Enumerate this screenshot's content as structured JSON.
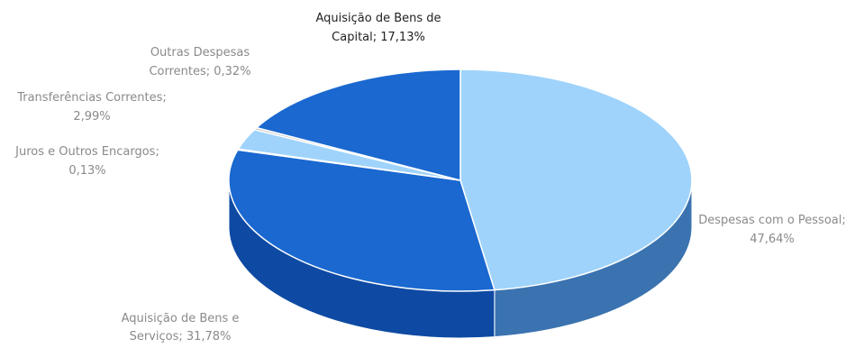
{
  "chart_data": {
    "type": "pie",
    "style": "3d-pie",
    "title": "",
    "legend": "none",
    "slices": [
      {
        "label": "Despesas com o Pessoal",
        "value": 47.64,
        "display": "47,64%",
        "line1": "Despesas com o Pessoal;",
        "line2": "47,64%",
        "color": "#9fd3fb",
        "side_color": "#3a73b0",
        "label_color": "#8a8a8a"
      },
      {
        "label": "Aquisição de Bens e Serviços",
        "value": 31.78,
        "display": "31,78%",
        "line1": "Aquisição de Bens e",
        "line2": "Serviços; 31,78%",
        "color": "#1a68d0",
        "side_color": "#0e4aa3",
        "label_color": "#8a8a8a"
      },
      {
        "label": "Juros e Outros Encargos",
        "value": 0.13,
        "display": "0,13%",
        "line1": "Juros e Outros Encargos;",
        "line2": "0,13%",
        "color": "#1a68d0",
        "side_color": "#0e4aa3",
        "label_color": "#8a8a8a"
      },
      {
        "label": "Transferências Correntes",
        "value": 2.99,
        "display": "2,99%",
        "line1": "Transferências Correntes;",
        "line2": "2,99%",
        "color": "#9fd3fb",
        "side_color": "#3a73b0",
        "label_color": "#8a8a8a"
      },
      {
        "label": "Outras Despesas Correntes",
        "value": 0.32,
        "display": "0,32%",
        "line1": "Outras Despesas",
        "line2": "Correntes; 0,32%",
        "color": "#c9c9c9",
        "side_color": "#9a9a9a",
        "label_color": "#8a8a8a"
      },
      {
        "label": "Aquisição de Bens de Capital",
        "value": 17.13,
        "display": "17,13%",
        "line1": "Aquisição de Bens de",
        "line2": "Capital; 17,13%",
        "color": "#1a68d0",
        "side_color": "#0e4aa3",
        "label_color": "#222222"
      }
    ]
  }
}
